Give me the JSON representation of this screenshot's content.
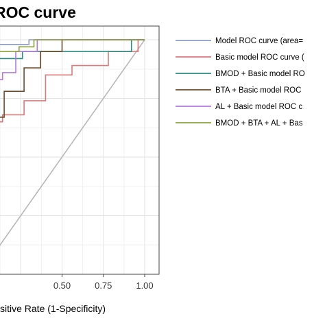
{
  "chart_data": {
    "type": "line",
    "title": "ROC curve",
    "xlabel": "sitive Rate (1-Specificity)",
    "ylabel": "",
    "xlim": [
      0.0,
      1.0
    ],
    "ylim": [
      0.0,
      1.0
    ],
    "x_tick_labels": [
      "0.50",
      "0.75",
      "1.00"
    ],
    "x_ticks": [
      0.5,
      0.75,
      1.0
    ],
    "grid": true,
    "legend_position": "right",
    "reference_line": {
      "x": [
        0,
        1
      ],
      "y": [
        0,
        1
      ],
      "color": "#b8b8b8"
    },
    "series": [
      {
        "name": "Model ROC curve (area=",
        "color": "#8c9bc4",
        "x": [
          0.0,
          0.05,
          0.05,
          0.3,
          0.3,
          0.92,
          0.92,
          1.0
        ],
        "y": [
          0.7,
          0.7,
          0.98,
          0.98,
          1.0,
          1.0,
          1.0,
          1.0
        ]
      },
      {
        "name": "Basic model ROC curve (",
        "color": "#d97a7a",
        "x": [
          0.0,
          0.14,
          0.14,
          0.27,
          0.27,
          0.4,
          0.4,
          0.56,
          0.56,
          0.78,
          0.78,
          0.96,
          0.96,
          1.0
        ],
        "y": [
          0.65,
          0.65,
          0.68,
          0.68,
          0.74,
          0.74,
          0.85,
          0.85,
          0.89,
          0.89,
          0.95,
          0.95,
          1.0,
          1.0
        ]
      },
      {
        "name": "BMOD + Basic model RO",
        "color": "#2b8c82",
        "x": [
          0.0,
          0.04,
          0.04,
          0.1,
          0.1,
          0.12,
          0.12,
          0.26,
          0.26,
          0.33,
          0.33,
          0.92,
          0.92,
          1.0
        ],
        "y": [
          0.65,
          0.65,
          0.78,
          0.78,
          0.86,
          0.86,
          0.92,
          0.92,
          0.95,
          0.95,
          0.95,
          0.95,
          1.0,
          1.0
        ]
      },
      {
        "name": "BTA + Basic model ROC",
        "color": "#6b4a2a",
        "x": [
          0.0,
          0.09,
          0.09,
          0.15,
          0.15,
          0.27,
          0.27,
          0.37,
          0.37,
          0.5,
          0.5,
          1.0
        ],
        "y": [
          0.6,
          0.6,
          0.67,
          0.67,
          0.78,
          0.78,
          0.88,
          0.88,
          0.95,
          0.95,
          1.0,
          1.0
        ]
      },
      {
        "name": "AL + Basic model ROC c",
        "color": "#b27ae0",
        "x": [
          0.0,
          0.03,
          0.03,
          0.14,
          0.14,
          0.22,
          0.22,
          0.35,
          0.35,
          1.0
        ],
        "y": [
          0.75,
          0.75,
          0.83,
          0.83,
          0.86,
          0.86,
          0.95,
          0.95,
          1.0,
          1.0
        ]
      },
      {
        "name": "BMOD + BTA + AL + Bas",
        "color": "#8aa23a",
        "x": [
          0.0,
          0.0,
          0.04,
          0.04,
          0.1,
          0.1,
          0.24,
          0.24,
          0.33,
          0.33,
          1.0
        ],
        "y": [
          0.7,
          0.84,
          0.84,
          0.88,
          0.88,
          0.95,
          0.95,
          0.97,
          0.97,
          1.0,
          1.0
        ]
      }
    ]
  }
}
